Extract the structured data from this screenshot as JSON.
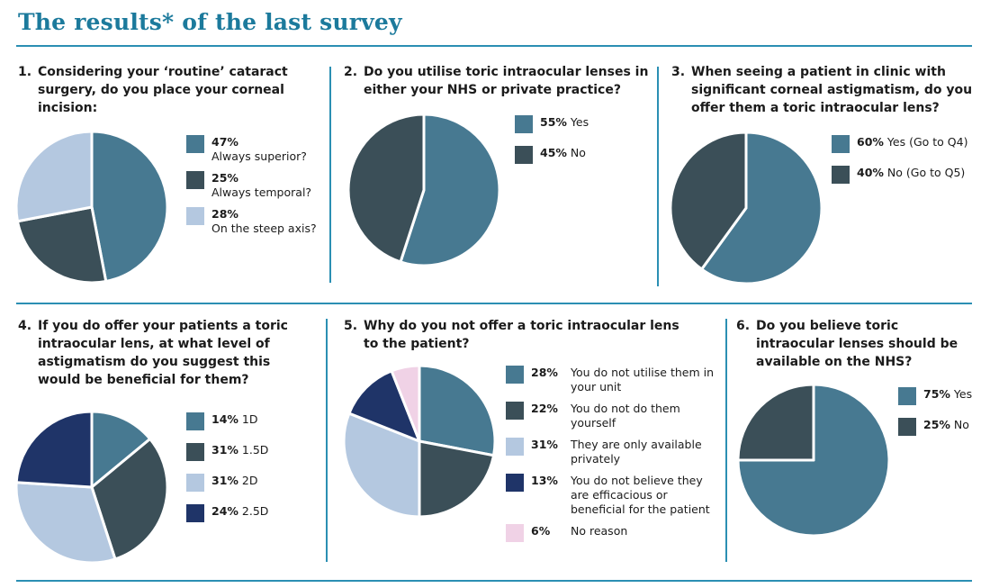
{
  "header": {
    "title": "The results* of the last survey"
  },
  "colors": {
    "accent": "#1c7a9c",
    "rule": "#2b8fb3",
    "steel_blue": "#477991",
    "dark_slate": "#3b4f58",
    "light_blue": "#b4c8e0",
    "navy": "#1f3468",
    "pink": "#f0d2e6"
  },
  "chart_data": [
    {
      "type": "pie",
      "number": "1.",
      "title": "Considering your ‘routine’ cataract surgery, do you place your corneal incision:",
      "slices": [
        {
          "pct_label": "47%",
          "label": "Always superior?",
          "value": 47,
          "color": "#477991"
        },
        {
          "pct_label": "25%",
          "label": "Always temporal?",
          "value": 25,
          "color": "#3b4f58"
        },
        {
          "pct_label": "28%",
          "label": "On the steep axis?",
          "value": 28,
          "color": "#b4c8e0"
        }
      ]
    },
    {
      "type": "pie",
      "number": "2.",
      "title": "Do you utilise toric intraocular lenses in either your NHS or private practice?",
      "slices": [
        {
          "pct_label": "55%",
          "label": "Yes",
          "value": 55,
          "color": "#477991"
        },
        {
          "pct_label": "45%",
          "label": "No",
          "value": 45,
          "color": "#3b4f58"
        }
      ]
    },
    {
      "type": "pie",
      "number": "3.",
      "title": "When seeing a patient in clinic with significant corneal astigmatism, do you offer them a toric intraocular lens?",
      "slices": [
        {
          "pct_label": "60%",
          "label": "Yes (Go to Q4)",
          "value": 60,
          "color": "#477991"
        },
        {
          "pct_label": "40%",
          "label": "No (Go to Q5)",
          "value": 40,
          "color": "#3b4f58"
        }
      ]
    },
    {
      "type": "pie",
      "number": "4.",
      "title": "If you do offer your patients a toric intraocular lens, at what level of astigmatism do you suggest this would be beneficial for them?",
      "slices": [
        {
          "pct_label": "14%",
          "label": "1D",
          "value": 14,
          "color": "#477991"
        },
        {
          "pct_label": "31%",
          "label": "1.5D",
          "value": 31,
          "color": "#3b4f58"
        },
        {
          "pct_label": "31%",
          "label": "2D",
          "value": 31,
          "color": "#b4c8e0"
        },
        {
          "pct_label": "24%",
          "label": "2.5D",
          "value": 24,
          "color": "#1f3468"
        }
      ]
    },
    {
      "type": "pie",
      "number": "5.",
      "title": "Why do you not offer a toric intraocular lens to the patient?",
      "slices": [
        {
          "pct_label": "28%",
          "label": "You do not utilise them in your unit",
          "value": 28,
          "color": "#477991"
        },
        {
          "pct_label": "22%",
          "label": "You do not do them yourself",
          "value": 22,
          "color": "#3b4f58"
        },
        {
          "pct_label": "31%",
          "label": "They are only available privately",
          "value": 31,
          "color": "#b4c8e0"
        },
        {
          "pct_label": "13%",
          "label": "You do not believe they are efficacious or beneficial for the patient",
          "value": 13,
          "color": "#1f3468"
        },
        {
          "pct_label": "6%",
          "label": "No reason",
          "value": 6,
          "color": "#f0d2e6"
        }
      ]
    },
    {
      "type": "pie",
      "number": "6.",
      "title": "Do you believe toric intraocular lenses should be available on the NHS?",
      "slices": [
        {
          "pct_label": "75%",
          "label": "Yes",
          "value": 75,
          "color": "#477991"
        },
        {
          "pct_label": "25%",
          "label": "No",
          "value": 25,
          "color": "#3b4f58"
        }
      ]
    }
  ]
}
